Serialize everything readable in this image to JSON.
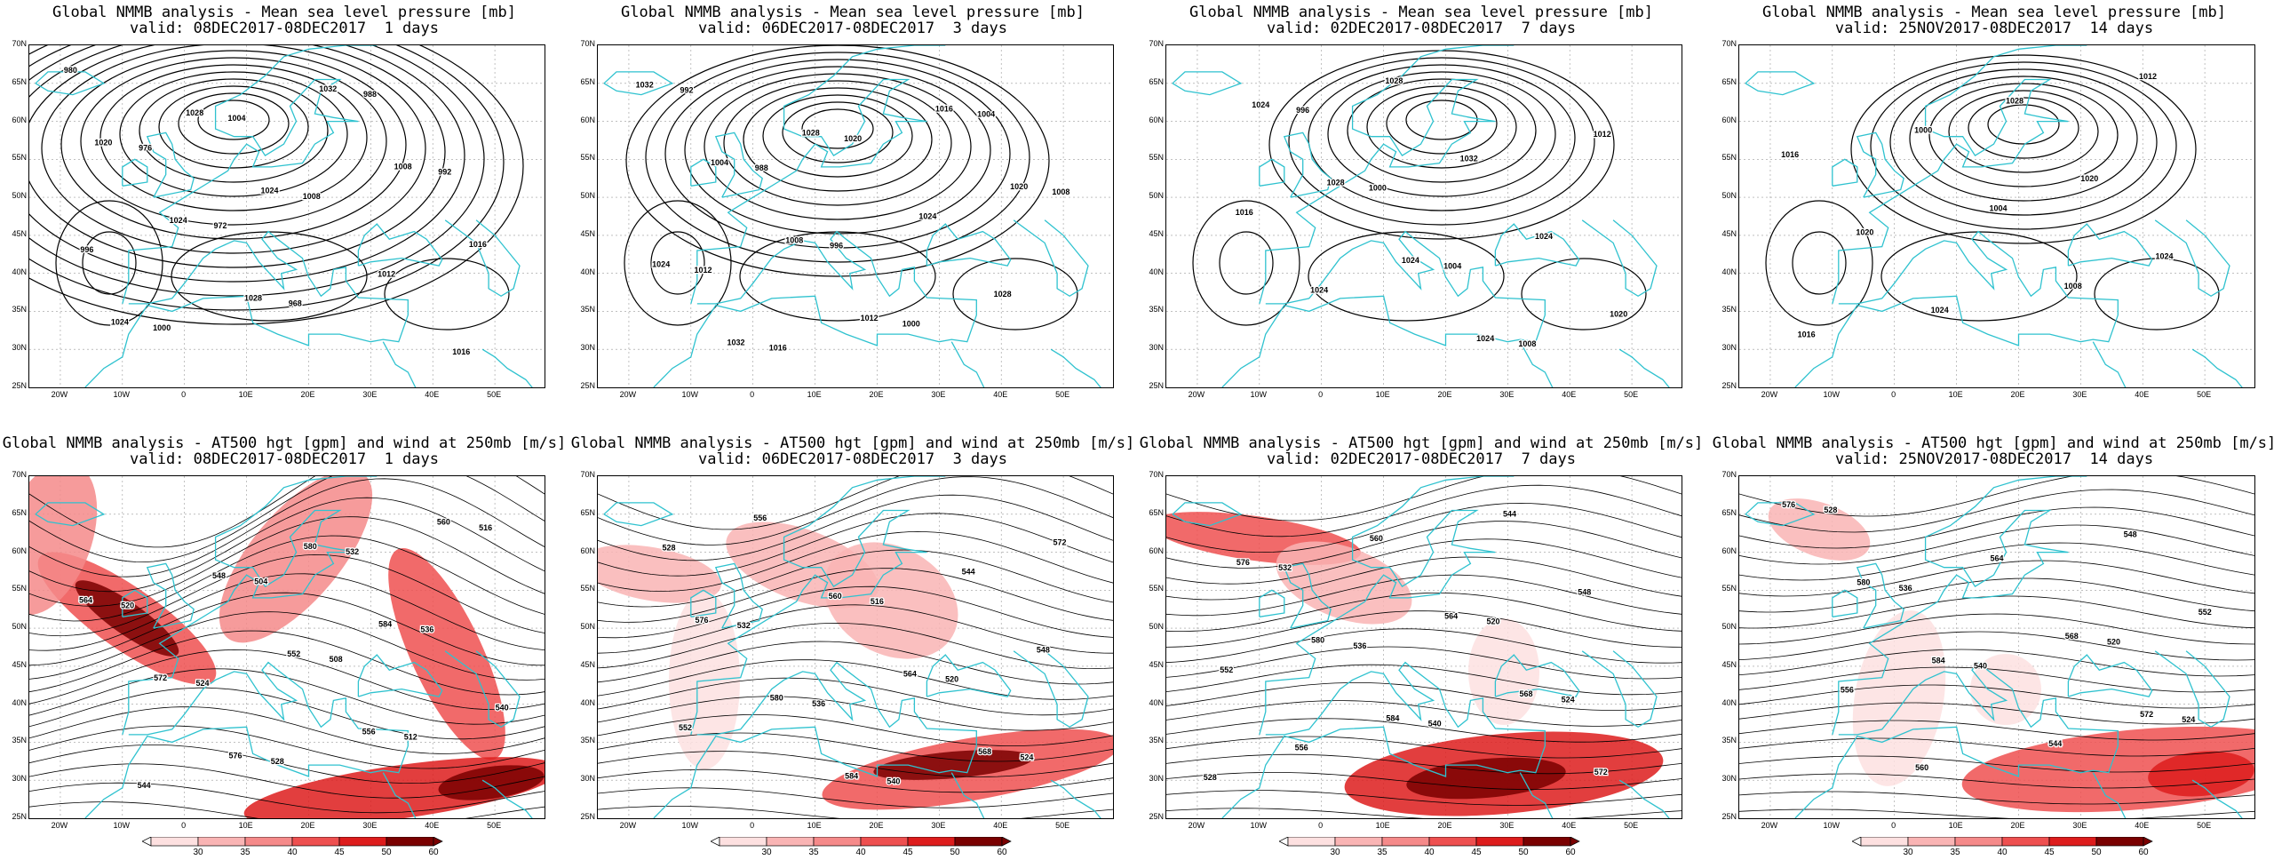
{
  "colors": {
    "coast": "#2fc2cf",
    "contour": "#000000",
    "grid": "#9a9a9a",
    "wind_30": "#fde0e0",
    "wind_35": "#f9b4b4",
    "wind_40": "#f58a8a",
    "wind_45": "#ee5050",
    "wind_50": "#dd1c1c",
    "wind_60": "#7a0000"
  },
  "lat_labels": [
    "70N",
    "65N",
    "60N",
    "55N",
    "50N",
    "45N",
    "40N",
    "35N",
    "30N",
    "25N"
  ],
  "lon_labels": [
    "20W",
    "10W",
    "0",
    "10E",
    "20E",
    "30E",
    "40E",
    "50E"
  ],
  "colorbar_labels": [
    "30",
    "35",
    "40",
    "45",
    "50",
    "60"
  ],
  "panels": [
    {
      "title1": "Global NMMB analysis - Mean sea level pressure [mb]",
      "title2": "valid: 08DEC2017-08DEC2017  1 days",
      "type": "mslp",
      "contour_labels": [
        "980",
        "976",
        "972",
        "968",
        "988",
        "992",
        "996",
        "1000",
        "1004",
        "1008",
        "1012",
        "1016",
        "1020",
        "1024",
        "1028",
        "1032",
        "1008",
        "1016",
        "1024",
        "1028",
        "1024"
      ]
    },
    {
      "title1": "Global NMMB analysis - Mean sea level pressure [mb]",
      "title2": "valid: 06DEC2017-08DEC2017  3 days",
      "type": "mslp",
      "contour_labels": [
        "992",
        "988",
        "996",
        "1000",
        "1004",
        "1008",
        "1012",
        "1016",
        "1020",
        "1024",
        "1028",
        "1032",
        "1004",
        "1008",
        "1012",
        "1016",
        "1020",
        "1024",
        "1032",
        "1028"
      ]
    },
    {
      "title1": "Global NMMB analysis - Mean sea level pressure [mb]",
      "title2": "valid: 02DEC2017-08DEC2017  7 days",
      "type": "mslp",
      "contour_labels": [
        "996",
        "1000",
        "1004",
        "1008",
        "1012",
        "1016",
        "1024",
        "1028",
        "1032",
        "1024",
        "1020",
        "1024",
        "1028",
        "1024",
        "1024"
      ]
    },
    {
      "title1": "Global NMMB analysis - Mean sea level pressure [mb]",
      "title2": "valid: 25NOV2017-08DEC2017  14 days",
      "type": "mslp",
      "contour_labels": [
        "1000",
        "1004",
        "1008",
        "1012",
        "1016",
        "1020",
        "1024",
        "1028",
        "1020",
        "1024",
        "1016"
      ]
    },
    {
      "title1": "Global NMMB analysis - AT500 hgt [gpm] and wind at 250mb [m/s]",
      "title2": "valid: 08DEC2017-08DEC2017  1 days",
      "type": "z500",
      "contour_labels": [
        "504",
        "508",
        "512",
        "516",
        "520",
        "524",
        "528",
        "532",
        "536",
        "540",
        "544",
        "548",
        "552",
        "556",
        "560",
        "564",
        "572",
        "576",
        "580",
        "584"
      ]
    },
    {
      "title1": "Global NMMB analysis - AT500 hgt [gpm] and wind at 250mb [m/s]",
      "title2": "valid: 06DEC2017-08DEC2017  3 days",
      "type": "z500",
      "contour_labels": [
        "516",
        "520",
        "524",
        "528",
        "532",
        "536",
        "540",
        "544",
        "548",
        "552",
        "556",
        "560",
        "564",
        "568",
        "572",
        "576",
        "580",
        "584"
      ]
    },
    {
      "title1": "Global NMMB analysis - AT500 hgt [gpm] and wind at 250mb [m/s]",
      "title2": "valid: 02DEC2017-08DEC2017  7 days",
      "type": "z500",
      "contour_labels": [
        "520",
        "524",
        "528",
        "532",
        "536",
        "540",
        "544",
        "548",
        "552",
        "556",
        "560",
        "564",
        "568",
        "572",
        "576",
        "580",
        "584"
      ]
    },
    {
      "title1": "Global NMMB analysis - AT500 hgt [gpm] and wind at 250mb [m/s]",
      "title2": "valid: 25NOV2017-08DEC2017  14 days",
      "type": "z500",
      "contour_labels": [
        "520",
        "524",
        "528",
        "536",
        "540",
        "544",
        "548",
        "552",
        "556",
        "560",
        "564",
        "568",
        "572",
        "576",
        "580",
        "584"
      ]
    }
  ]
}
